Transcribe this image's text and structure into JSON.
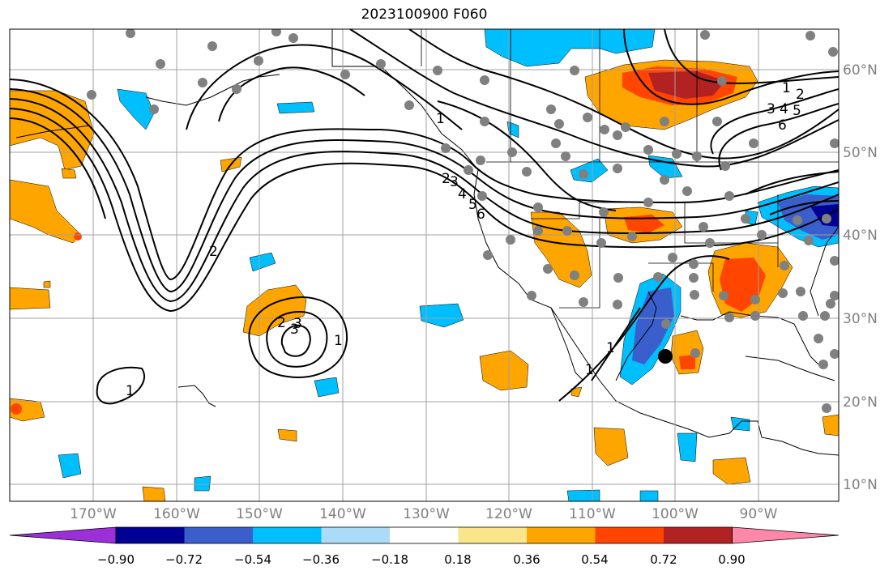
{
  "title": "2023100900 F060",
  "latitude_labels": [
    "60°N",
    "50°N",
    "40°N",
    "30°N",
    "20°N",
    "10°N"
  ],
  "longitude_labels": [
    "170°W",
    "160°W",
    "150°W",
    "140°W",
    "130°W",
    "120°W",
    "110°W",
    "100°W",
    "90°W"
  ],
  "colorbar": {
    "tick_labels": [
      "−0.90",
      "−0.72",
      "−0.54",
      "−0.36",
      "−0.18",
      "0.18",
      "0.36",
      "0.54",
      "0.72",
      "0.90"
    ],
    "colors": [
      "#9b30d9",
      "#000094",
      "#3a5fcd",
      "#00bfff",
      "#aadcf7",
      "#ffffff",
      "#fbe58a",
      "#ffa500",
      "#ff4500",
      "#b22222",
      "#ff88aa"
    ]
  },
  "contour_labels": [
    "1",
    "2",
    "3",
    "4",
    "5",
    "6",
    "1",
    "2",
    "3",
    "4",
    "5",
    "6",
    "2",
    "3",
    "1",
    "2",
    "3",
    "1",
    "1",
    "1"
  ],
  "colors": {
    "positive_low": "#fbe58a",
    "positive_mid": "#ffa500",
    "positive_high": "#ff4500",
    "positive_max": "#b22222",
    "negative_low": "#aadcf7",
    "negative_mid": "#00bfff",
    "negative_high": "#3a5fcd",
    "station": "#808080"
  }
}
